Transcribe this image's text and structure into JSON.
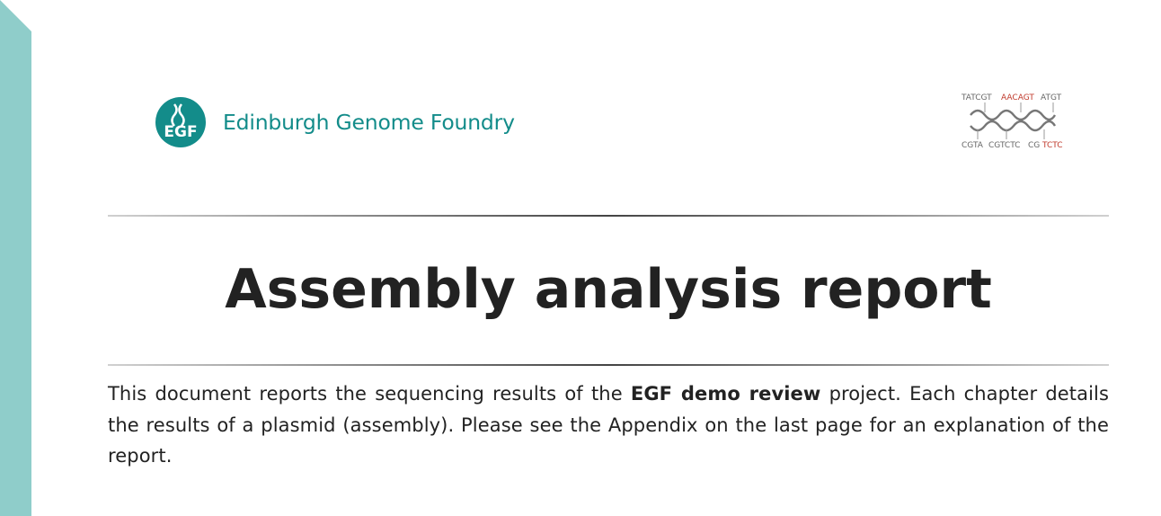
{
  "brand": {
    "name": "Edinburgh Genome Foundry",
    "logo_letters": "EGF",
    "accent_color": "#138c8a",
    "side_band_color": "#8fcdca"
  },
  "dna_logo": {
    "top_row": [
      "TATCGT",
      "AACAGT",
      "ATGT"
    ],
    "bottom_row": [
      "CGTA",
      "CGTCTC",
      "CG",
      "TCTC"
    ],
    "highlight_color": "#c0392b"
  },
  "report": {
    "title": "Assembly analysis report",
    "intro_before": "This document reports the sequencing results of the ",
    "project_name": "EGF demo review",
    "intro_after": " project. Each chapter details the results of a plasmid (assembly). Please see the Appendix on the last page for an explanation of the report."
  }
}
